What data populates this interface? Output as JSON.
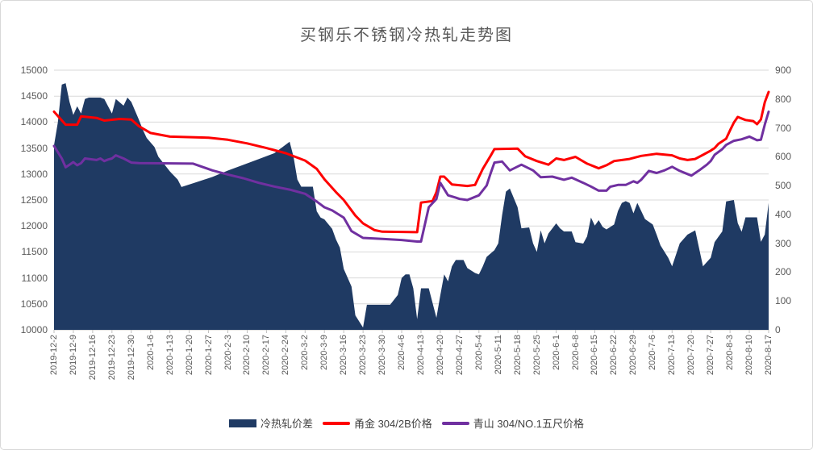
{
  "title": "买钢乐不锈钢冷热轧走势图",
  "colors": {
    "grid": "#d9d9d9",
    "axis_line": "#bfbfbf",
    "axis_text": "#595959",
    "title_text": "#595959",
    "legend_text": "#404040",
    "area_fill": "#1f3a63",
    "red_line": "#fe0000",
    "purple_line": "#7030a0"
  },
  "chart_data": {
    "type": "area",
    "subtype": "combo area + 2 lines",
    "title": "买钢乐不锈钢冷热轧走势图",
    "grid": "horizontal",
    "legend_position": "bottom",
    "x_note": "points are trading-day index from 2019-12-2 (0..185); one axis label per 5 days",
    "x_domain_days": [
      0,
      185
    ],
    "x_tick_labels": [
      "2019-12-2",
      "2019-12-9",
      "2019-12-16",
      "2019-12-23",
      "2019-12-30",
      "2020-1-6",
      "2020-1-13",
      "2020-1-20",
      "2020-1-27",
      "2020-2-3",
      "2020-2-10",
      "2020-2-17",
      "2020-2-24",
      "2020-3-2",
      "2020-3-9",
      "2020-3-16",
      "2020-3-23",
      "2020-3-30",
      "2020-4-6",
      "2020-4-13",
      "2020-4-20",
      "2020-4-27",
      "2020-5-4",
      "2020-5-11",
      "2020-5-18",
      "2020-5-25",
      "2020-6-1",
      "2020-6-8",
      "2020-6-15",
      "2020-6-22",
      "2020-6-29",
      "2020-7-6",
      "2020-7-13",
      "2020-7-20",
      "2020-7-27",
      "2020-8-3",
      "2020-8-10",
      "2020-8-17"
    ],
    "left_axis": {
      "min": 10000,
      "max": 15000,
      "step": 500,
      "tick_labels": [
        "15000",
        "14500",
        "14000",
        "13500",
        "13000",
        "12500",
        "12000",
        "11500",
        "11000",
        "10500",
        "10000"
      ]
    },
    "right_axis": {
      "min": 0,
      "max": 900,
      "step": 100,
      "tick_labels": [
        "900",
        "800",
        "700",
        "600",
        "500",
        "400",
        "300",
        "200",
        "100",
        "0"
      ]
    },
    "series": [
      {
        "name": "冷热轧价差",
        "type": "area",
        "axis": "right",
        "color": "#1f3a63",
        "points": [
          [
            0,
            640
          ],
          [
            1,
            720
          ],
          [
            2,
            850
          ],
          [
            3,
            855
          ],
          [
            4,
            790
          ],
          [
            5,
            745
          ],
          [
            6,
            775
          ],
          [
            7,
            750
          ],
          [
            8,
            800
          ],
          [
            9,
            805
          ],
          [
            12,
            805
          ],
          [
            13,
            800
          ],
          [
            14,
            775
          ],
          [
            15,
            750
          ],
          [
            16,
            800
          ],
          [
            18,
            777
          ],
          [
            19,
            805
          ],
          [
            20,
            790
          ],
          [
            22,
            727
          ],
          [
            23,
            693
          ],
          [
            24,
            665
          ],
          [
            26,
            634
          ],
          [
            27,
            600
          ],
          [
            29,
            566
          ],
          [
            30,
            549
          ],
          [
            32,
            521
          ],
          [
            33,
            495
          ],
          [
            36,
            508
          ],
          [
            41,
            530
          ],
          [
            45,
            552
          ],
          [
            49,
            572
          ],
          [
            53,
            592
          ],
          [
            57,
            612
          ],
          [
            59,
            632
          ],
          [
            61,
            652
          ],
          [
            62,
            600
          ],
          [
            63,
            521
          ],
          [
            64,
            496
          ],
          [
            67,
            496
          ],
          [
            68,
            411
          ],
          [
            69,
            389
          ],
          [
            70,
            383
          ],
          [
            72,
            350
          ],
          [
            73,
            313
          ],
          [
            74,
            285
          ],
          [
            75,
            211
          ],
          [
            77,
            150
          ],
          [
            78,
            50
          ],
          [
            80,
            8
          ],
          [
            81,
            87
          ],
          [
            87,
            87
          ],
          [
            89,
            121
          ],
          [
            90,
            180
          ],
          [
            91,
            192
          ],
          [
            92,
            192
          ],
          [
            93,
            144
          ],
          [
            94,
            37
          ],
          [
            95,
            144
          ],
          [
            97,
            144
          ],
          [
            99,
            42
          ],
          [
            100,
            120
          ],
          [
            101,
            192
          ],
          [
            102,
            168
          ],
          [
            103,
            220
          ],
          [
            104,
            242
          ],
          [
            106,
            242
          ],
          [
            107,
            214
          ],
          [
            109,
            197
          ],
          [
            110,
            192
          ],
          [
            111,
            220
          ],
          [
            112,
            253
          ],
          [
            114,
            276
          ],
          [
            115,
            300
          ],
          [
            116,
            397
          ],
          [
            117,
            479
          ],
          [
            118,
            490
          ],
          [
            120,
            425
          ],
          [
            121,
            352
          ],
          [
            123,
            355
          ],
          [
            124,
            300
          ],
          [
            125,
            270
          ],
          [
            126,
            345
          ],
          [
            127,
            300
          ],
          [
            128,
            334
          ],
          [
            130,
            369
          ],
          [
            131,
            352
          ],
          [
            132,
            341
          ],
          [
            134,
            341
          ],
          [
            135,
            304
          ],
          [
            137,
            299
          ],
          [
            138,
            324
          ],
          [
            139,
            389
          ],
          [
            140,
            361
          ],
          [
            141,
            380
          ],
          [
            142,
            357
          ],
          [
            143,
            348
          ],
          [
            145,
            365
          ],
          [
            146,
            412
          ],
          [
            147,
            440
          ],
          [
            148,
            446
          ],
          [
            149,
            440
          ],
          [
            150,
            404
          ],
          [
            151,
            440
          ],
          [
            152,
            412
          ],
          [
            153,
            384
          ],
          [
            155,
            365
          ],
          [
            156,
            330
          ],
          [
            157,
            293
          ],
          [
            159,
            250
          ],
          [
            160,
            220
          ],
          [
            162,
            300
          ],
          [
            164,
            330
          ],
          [
            166,
            345
          ],
          [
            168,
            220
          ],
          [
            170,
            250
          ],
          [
            171,
            304
          ],
          [
            173,
            341
          ],
          [
            174,
            445
          ],
          [
            176,
            450
          ],
          [
            177,
            370
          ],
          [
            178,
            340
          ],
          [
            179,
            390
          ],
          [
            182,
            390
          ],
          [
            183,
            305
          ],
          [
            184,
            330
          ],
          [
            185,
            440
          ]
        ]
      },
      {
        "name": "甬金 304/2B价格",
        "type": "line",
        "axis": "left",
        "color": "#fe0000",
        "points": [
          [
            0,
            14200
          ],
          [
            3,
            13950
          ],
          [
            6,
            13950
          ],
          [
            7,
            14110
          ],
          [
            11,
            14080
          ],
          [
            13,
            14030
          ],
          [
            17,
            14060
          ],
          [
            20,
            14050
          ],
          [
            22,
            13920
          ],
          [
            25,
            13790
          ],
          [
            30,
            13720
          ],
          [
            40,
            13700
          ],
          [
            45,
            13660
          ],
          [
            50,
            13590
          ],
          [
            55,
            13500
          ],
          [
            60,
            13400
          ],
          [
            65,
            13260
          ],
          [
            68,
            13100
          ],
          [
            70,
            12900
          ],
          [
            73,
            12650
          ],
          [
            75,
            12500
          ],
          [
            78,
            12200
          ],
          [
            80,
            12050
          ],
          [
            83,
            11920
          ],
          [
            85,
            11890
          ],
          [
            94,
            11880
          ],
          [
            95,
            12450
          ],
          [
            98,
            12480
          ],
          [
            99,
            12650
          ],
          [
            100,
            12950
          ],
          [
            101,
            12950
          ],
          [
            103,
            12800
          ],
          [
            107,
            12770
          ],
          [
            109,
            12790
          ],
          [
            111,
            13100
          ],
          [
            113,
            13350
          ],
          [
            114,
            13480
          ],
          [
            120,
            13490
          ],
          [
            122,
            13340
          ],
          [
            125,
            13250
          ],
          [
            128,
            13180
          ],
          [
            130,
            13300
          ],
          [
            132,
            13270
          ],
          [
            135,
            13330
          ],
          [
            138,
            13200
          ],
          [
            141,
            13110
          ],
          [
            143,
            13170
          ],
          [
            145,
            13250
          ],
          [
            149,
            13290
          ],
          [
            152,
            13350
          ],
          [
            156,
            13390
          ],
          [
            160,
            13360
          ],
          [
            162,
            13300
          ],
          [
            164,
            13270
          ],
          [
            166,
            13290
          ],
          [
            168,
            13370
          ],
          [
            170,
            13450
          ],
          [
            171,
            13500
          ],
          [
            172,
            13580
          ],
          [
            174,
            13680
          ],
          [
            175,
            13840
          ],
          [
            176,
            13990
          ],
          [
            177,
            14100
          ],
          [
            179,
            14040
          ],
          [
            181,
            14020
          ],
          [
            182,
            13960
          ],
          [
            183,
            14050
          ],
          [
            184,
            14380
          ],
          [
            185,
            14580
          ]
        ]
      },
      {
        "name": "青山 304/NO.1五尺价格",
        "type": "line",
        "axis": "left",
        "color": "#7030a0",
        "points": [
          [
            0,
            13540
          ],
          [
            2,
            13300
          ],
          [
            3,
            13130
          ],
          [
            4,
            13180
          ],
          [
            5,
            13230
          ],
          [
            6,
            13170
          ],
          [
            7,
            13210
          ],
          [
            8,
            13300
          ],
          [
            11,
            13270
          ],
          [
            12,
            13300
          ],
          [
            13,
            13250
          ],
          [
            14,
            13280
          ],
          [
            15,
            13300
          ],
          [
            16,
            13360
          ],
          [
            18,
            13300
          ],
          [
            20,
            13220
          ],
          [
            22,
            13210
          ],
          [
            36,
            13200
          ],
          [
            41,
            13070
          ],
          [
            45,
            12990
          ],
          [
            49,
            12920
          ],
          [
            53,
            12830
          ],
          [
            57,
            12760
          ],
          [
            61,
            12700
          ],
          [
            65,
            12620
          ],
          [
            68,
            12470
          ],
          [
            70,
            12360
          ],
          [
            72,
            12300
          ],
          [
            75,
            12160
          ],
          [
            77,
            11900
          ],
          [
            80,
            11770
          ],
          [
            85,
            11750
          ],
          [
            90,
            11730
          ],
          [
            94,
            11700
          ],
          [
            95,
            11700
          ],
          [
            97,
            12360
          ],
          [
            99,
            12520
          ],
          [
            100,
            12830
          ],
          [
            102,
            12590
          ],
          [
            104,
            12545
          ],
          [
            105,
            12520
          ],
          [
            107,
            12500
          ],
          [
            110,
            12590
          ],
          [
            112,
            12780
          ],
          [
            113,
            13010
          ],
          [
            114,
            13220
          ],
          [
            116,
            13240
          ],
          [
            118,
            13070
          ],
          [
            121,
            13180
          ],
          [
            124,
            13070
          ],
          [
            126,
            12940
          ],
          [
            129,
            12950
          ],
          [
            132,
            12890
          ],
          [
            134,
            12930
          ],
          [
            137,
            12830
          ],
          [
            139,
            12760
          ],
          [
            141,
            12680
          ],
          [
            143,
            12680
          ],
          [
            144,
            12755
          ],
          [
            146,
            12790
          ],
          [
            148,
            12790
          ],
          [
            150,
            12860
          ],
          [
            151,
            12830
          ],
          [
            152,
            12890
          ],
          [
            154,
            13060
          ],
          [
            156,
            13020
          ],
          [
            158,
            13070
          ],
          [
            160,
            13140
          ],
          [
            162,
            13060
          ],
          [
            164,
            13000
          ],
          [
            165,
            12970
          ],
          [
            167,
            13070
          ],
          [
            169,
            13180
          ],
          [
            170,
            13250
          ],
          [
            171,
            13370
          ],
          [
            173,
            13480
          ],
          [
            174,
            13560
          ],
          [
            176,
            13640
          ],
          [
            178,
            13670
          ],
          [
            180,
            13720
          ],
          [
            182,
            13650
          ],
          [
            183,
            13660
          ],
          [
            184,
            13950
          ],
          [
            185,
            14200
          ]
        ]
      }
    ]
  }
}
